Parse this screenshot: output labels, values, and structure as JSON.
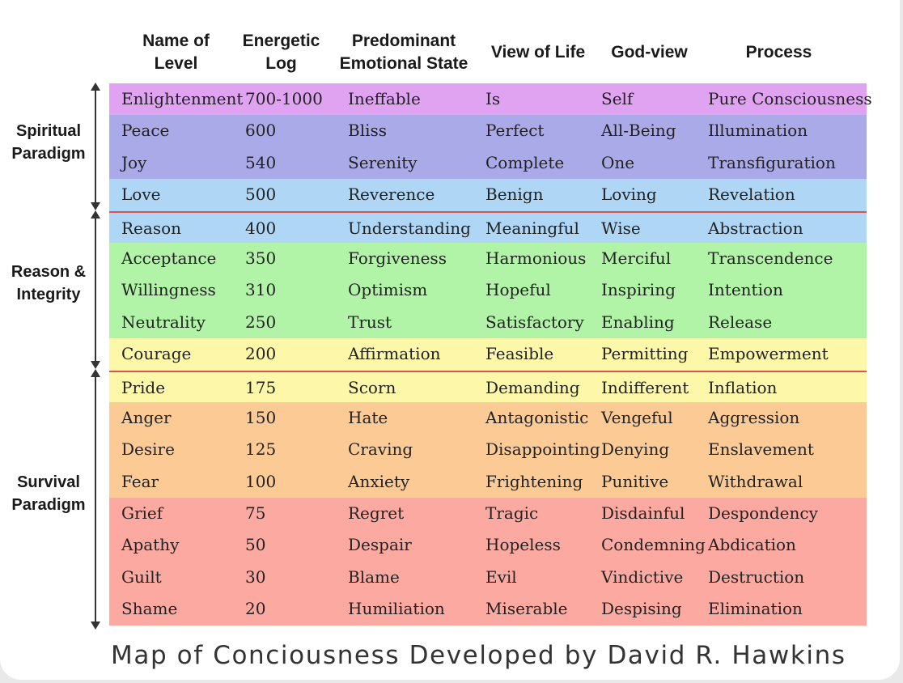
{
  "headers": {
    "level": "Name of\nLevel",
    "log": "Energetic\nLog",
    "emotion": "Predominant\nEmotional State",
    "view": "View of Life",
    "god": "God-view",
    "process": "Process"
  },
  "paradigms": {
    "spiritual": "Spiritual\nParadigm",
    "reason": "Reason &\nIntegrity",
    "survival": "Survival\nParadigm"
  },
  "rows": [
    {
      "level": "Enlightenment",
      "log": "700-1000",
      "emotion": "Ineffable",
      "view": "Is",
      "god": "Self",
      "process": "Pure Consciousness",
      "color": "#dfa3f1"
    },
    {
      "level": "Peace",
      "log": "600",
      "emotion": "Bliss",
      "view": "Perfect",
      "god": "All-Being",
      "process": "Illumination",
      "color": "#abaae9"
    },
    {
      "level": "Joy",
      "log": "540",
      "emotion": "Serenity",
      "view": "Complete",
      "god": "One",
      "process": "Transfiguration",
      "color": "#abaae9"
    },
    {
      "level": "Love",
      "log": "500",
      "emotion": "Reverence",
      "view": "Benign",
      "god": "Loving",
      "process": "Revelation",
      "color": "#afd6f5"
    },
    {
      "level": "Reason",
      "log": "400",
      "emotion": "Understanding",
      "view": "Meaningful",
      "god": "Wise",
      "process": "Abstraction",
      "color": "#afd6f5"
    },
    {
      "level": "Acceptance",
      "log": "350",
      "emotion": "Forgiveness",
      "view": "Harmonious",
      "god": "Merciful",
      "process": "Transcendence",
      "color": "#b2f4a7"
    },
    {
      "level": "Willingness",
      "log": "310",
      "emotion": "Optimism",
      "view": "Hopeful",
      "god": "Inspiring",
      "process": "Intention",
      "color": "#b2f4a7"
    },
    {
      "level": "Neutrality",
      "log": "250",
      "emotion": "Trust",
      "view": "Satisfactory",
      "god": "Enabling",
      "process": "Release",
      "color": "#b2f4a7"
    },
    {
      "level": "Courage",
      "log": "200",
      "emotion": "Affirmation",
      "view": "Feasible",
      "god": "Permitting",
      "process": "Empowerment",
      "color": "#fcf7a9"
    },
    {
      "level": "Pride",
      "log": "175",
      "emotion": "Scorn",
      "view": "Demanding",
      "god": "Indifferent",
      "process": "Inflation",
      "color": "#fcf7a9"
    },
    {
      "level": "Anger",
      "log": "150",
      "emotion": "Hate",
      "view": "Antagonistic",
      "god": "Vengeful",
      "process": "Aggression",
      "color": "#fccb95"
    },
    {
      "level": "Desire",
      "log": "125",
      "emotion": "Craving",
      "view": "Disappointing",
      "god": "Denying",
      "process": "Enslavement",
      "color": "#fccb95"
    },
    {
      "level": "Fear",
      "log": "100",
      "emotion": "Anxiety",
      "view": "Frightening",
      "god": "Punitive",
      "process": "Withdrawal",
      "color": "#fccb95"
    },
    {
      "level": "Grief",
      "log": "75",
      "emotion": "Regret",
      "view": "Tragic",
      "god": "Disdainful",
      "process": "Despondency",
      "color": "#fba9a1"
    },
    {
      "level": "Apathy",
      "log": "50",
      "emotion": "Despair",
      "view": "Hopeless",
      "god": "Condemning",
      "process": "Abdication",
      "color": "#fba9a1"
    },
    {
      "level": "Guilt",
      "log": "30",
      "emotion": "Blame",
      "view": "Evil",
      "god": "Vindictive",
      "process": "Destruction",
      "color": "#fba9a1"
    },
    {
      "level": "Shame",
      "log": "20",
      "emotion": "Humiliation",
      "view": "Miserable",
      "god": "Despising",
      "process": "Elimination",
      "color": "#fba9a1"
    }
  ],
  "caption": "Map of Conciousness Developed by David R. Hawkins",
  "separator_color": "#d9534f"
}
